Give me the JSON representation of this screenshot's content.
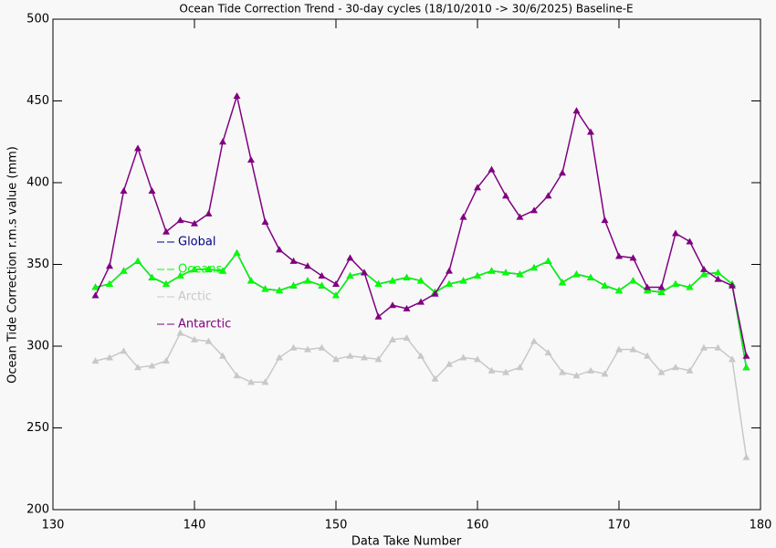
{
  "chart_data": {
    "type": "line",
    "title": "Ocean Tide Correction Trend - 30-day cycles (18/10/2010 -> 30/6/2025) Baseline-E",
    "x_label": "Data Take Number",
    "y_label": "Ocean Tide Correction r.m.s value (mm)",
    "x": [
      133,
      134,
      135,
      136,
      137,
      138,
      139,
      140,
      141,
      142,
      143,
      144,
      145,
      146,
      147,
      148,
      149,
      150,
      151,
      152,
      153,
      154,
      155,
      156,
      157,
      158,
      159,
      160,
      161,
      162,
      163,
      164,
      165,
      166,
      167,
      168,
      169,
      170,
      171,
      172,
      173,
      174,
      175,
      176,
      177,
      178,
      179
    ],
    "series": [
      {
        "name": "Global",
        "color": "#00008b",
        "values": [
          336,
          338,
          346,
          352,
          342,
          338,
          343,
          347,
          347,
          346,
          357,
          340,
          335,
          334,
          337,
          340,
          337,
          331,
          343,
          345,
          338,
          340,
          342,
          340,
          333,
          338,
          340,
          343,
          346,
          345,
          344,
          348,
          352,
          339,
          344,
          342,
          337,
          334,
          340,
          334,
          333,
          338,
          336,
          344,
          345,
          338,
          287
        ]
      },
      {
        "name": "Oceans",
        "color": "#00ff00",
        "values": [
          336,
          338,
          346,
          352,
          342,
          338,
          343,
          347,
          347,
          346,
          357,
          340,
          335,
          334,
          337,
          340,
          337,
          331,
          343,
          345,
          338,
          340,
          342,
          340,
          333,
          338,
          340,
          343,
          346,
          345,
          344,
          348,
          352,
          339,
          344,
          342,
          337,
          334,
          340,
          334,
          333,
          338,
          336,
          344,
          345,
          338,
          287
        ]
      },
      {
        "name": "Arctic",
        "color": "#c8c8c8",
        "values": [
          291,
          293,
          297,
          287,
          288,
          291,
          308,
          304,
          303,
          294,
          282,
          278,
          278,
          293,
          299,
          298,
          299,
          292,
          294,
          293,
          292,
          304,
          305,
          294,
          280,
          289,
          293,
          292,
          285,
          284,
          287,
          303,
          296,
          284,
          282,
          285,
          283,
          298,
          298,
          294,
          284,
          287,
          285,
          299,
          299,
          292,
          232
        ]
      },
      {
        "name": "Antarctic",
        "color": "#800080",
        "values": [
          331,
          349,
          395,
          421,
          395,
          370,
          377,
          375,
          381,
          425,
          453,
          414,
          376,
          359,
          352,
          349,
          343,
          338,
          354,
          345,
          318,
          325,
          323,
          327,
          332,
          346,
          379,
          397,
          408,
          392,
          379,
          383,
          392,
          406,
          444,
          431,
          377,
          355,
          354,
          336,
          336,
          369,
          364,
          347,
          341,
          337,
          294
        ]
      }
    ],
    "xlim": [
      130,
      180
    ],
    "xticks": [
      130,
      140,
      150,
      160,
      170,
      180
    ],
    "ylim": [
      200,
      500
    ],
    "yticks": [
      200,
      250,
      300,
      350,
      400,
      450,
      500
    ],
    "marker": "triangle"
  }
}
